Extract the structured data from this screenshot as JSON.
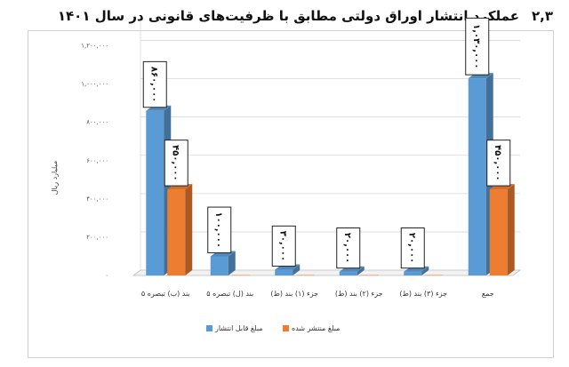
{
  "page": {
    "heading_number": "۲,۳",
    "heading_text": "عملکرد انتشار اوراق دولتی مطابق با ظرفیت‌های قانونی در سال ۱۴۰۱"
  },
  "chart_data": {
    "type": "bar",
    "title": "",
    "ylabel": "میلیارد ریال",
    "ylim": [
      0,
      1300000
    ],
    "y_ticks": [
      0,
      200000,
      400000,
      600000,
      800000,
      1000000,
      1200000
    ],
    "y_tick_labels": [
      "۰",
      "۲۰۰,۰۰۰",
      "۴۰۰,۰۰۰",
      "۶۰۰,۰۰۰",
      "۸۰۰,۰۰۰",
      "۱,۰۰۰,۰۰۰",
      "۱,۲۰۰,۰۰۰"
    ],
    "categories": [
      "بند (ب) تبصره ۵",
      "بند (ل) تبصره ۵",
      "جزء (۱) بند (ط)",
      "جزء (۲) بند (ط)",
      "جزء (۳) بند (ط)",
      "جمع"
    ],
    "series": [
      {
        "name": "مبلغ قابل انتشار",
        "color": "#5b9bd5",
        "values": [
          860000,
          100000,
          30000,
          20000,
          20000,
          1030000
        ],
        "labels": [
          "۸۶۰,۰۰۰",
          "۱۰۰,۰۰۰",
          "۳۰,۰۰۰",
          "۲۰,۰۰۰",
          "۲۰,۰۰۰",
          "۱,۰۳۰,۰۰۰"
        ]
      },
      {
        "name": "مبلغ منتشر شده",
        "color": "#ed7d31",
        "values": [
          450000,
          0,
          0,
          0,
          0,
          450000
        ],
        "labels": [
          "۴۵۰,۰۰۰",
          "",
          "",
          "",
          "",
          "۴۵۰,۰۰۰"
        ]
      }
    ],
    "legend_position": "bottom",
    "grid": true
  }
}
